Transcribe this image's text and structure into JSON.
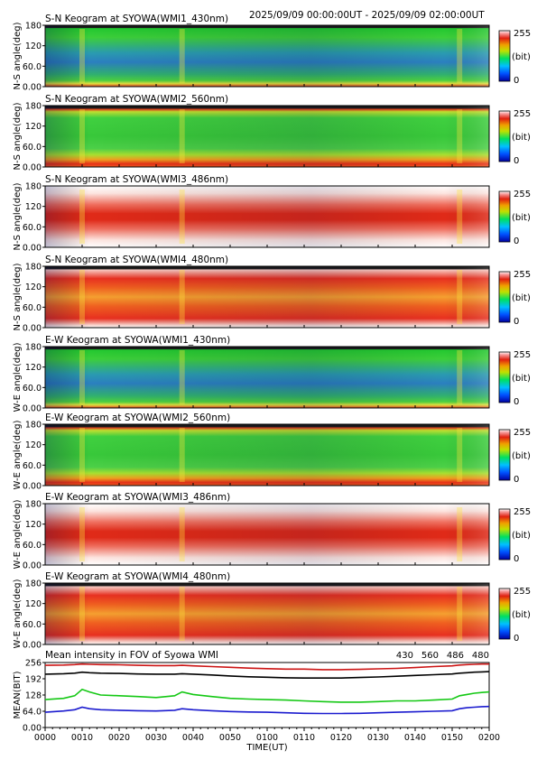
{
  "header": {
    "time_range": "2025/09/09 00:00:00UT - 2025/09/09 02:00:00UT"
  },
  "colors": {
    "430": "#1b1bcf",
    "560": "#14c814",
    "486": "#cc1414",
    "480": "#000000"
  },
  "chart_data": [
    {
      "type": "heatmap",
      "title": "S-N Keogram at SYOWA(WMI1_430nm)",
      "ylabel": "N-S angle(deg)",
      "profile": "blue_green",
      "yticks": [
        "180",
        "120",
        "60.0",
        "0.00"
      ],
      "ylim": [
        0,
        180
      ],
      "colorbar": {
        "max": "255",
        "unit": "(bit)",
        "min": "0"
      }
    },
    {
      "type": "heatmap",
      "title": "S-N Keogram at SYOWA(WMI2_560nm)",
      "ylabel": "N-S angle(deg)",
      "profile": "green_edges",
      "yticks": [
        "180",
        "120",
        "60.0",
        "0.00"
      ],
      "ylim": [
        0,
        180
      ],
      "colorbar": {
        "max": "255",
        "unit": "(bit)",
        "min": "0"
      }
    },
    {
      "type": "heatmap",
      "title": "S-N Keogram at SYOWA(WMI3_486nm)",
      "ylabel": "N-S angle(deg)",
      "profile": "red_band",
      "yticks": [
        "180",
        "120",
        "60.0",
        "0.00"
      ],
      "ylim": [
        0,
        180
      ],
      "colorbar": {
        "max": "255",
        "unit": "(bit)",
        "min": "0"
      }
    },
    {
      "type": "heatmap",
      "title": "S-N Keogram at SYOWA(WMI4_480nm)",
      "ylabel": "N-S angle(deg)",
      "profile": "red_orange",
      "yticks": [
        "180",
        "120",
        "60.0",
        "0.00"
      ],
      "ylim": [
        0,
        180
      ],
      "colorbar": {
        "max": "255",
        "unit": "(bit)",
        "min": "0"
      }
    },
    {
      "type": "heatmap",
      "title": "E-W Keogram at SYOWA(WMI1_430nm)",
      "ylabel": "W-E angle(deg)",
      "profile": "blue_green",
      "yticks": [
        "180",
        "120",
        "60.0",
        "0.00"
      ],
      "ylim": [
        0,
        180
      ],
      "colorbar": {
        "max": "255",
        "unit": "(bit)",
        "min": "0"
      }
    },
    {
      "type": "heatmap",
      "title": "E-W Keogram at SYOWA(WMI2_560nm)",
      "ylabel": "W-E angle(deg)",
      "profile": "green_edges",
      "yticks": [
        "180",
        "120",
        "60.0",
        "0.00"
      ],
      "ylim": [
        0,
        180
      ],
      "colorbar": {
        "max": "255",
        "unit": "(bit)",
        "min": "0"
      }
    },
    {
      "type": "heatmap",
      "title": "E-W Keogram at SYOWA(WMI3_486nm)",
      "ylabel": "W-E angle(deg)",
      "profile": "red_band",
      "yticks": [
        "180",
        "120",
        "60.0",
        "0.00"
      ],
      "ylim": [
        0,
        180
      ],
      "colorbar": {
        "max": "255",
        "unit": "(bit)",
        "min": "0"
      }
    },
    {
      "type": "heatmap",
      "title": "E-W Keogram at SYOWA(WMI4_480nm)",
      "ylabel": "W-E angle(deg)",
      "profile": "red_orange",
      "yticks": [
        "180",
        "120",
        "60.0",
        "0.00"
      ],
      "ylim": [
        0,
        180
      ],
      "colorbar": {
        "max": "255",
        "unit": "(bit)",
        "min": "0"
      }
    },
    {
      "type": "line",
      "title": "Mean intensity in FOV of Syowa WMI",
      "ylabel": "MEAN(BIT)",
      "xlabel": "TIME(UT)",
      "ylim": [
        0,
        256
      ],
      "yticks": [
        "256",
        "192",
        "128",
        "64.0",
        "0.00"
      ],
      "xticks": [
        "0000",
        "0010",
        "0020",
        "0030",
        "0040",
        "0050",
        "0100",
        "0110",
        "0120",
        "0130",
        "0140",
        "0150",
        "0200"
      ],
      "x_minutes": [
        0,
        5,
        8,
        10,
        12,
        15,
        20,
        25,
        30,
        35,
        37,
        40,
        45,
        50,
        55,
        60,
        65,
        70,
        75,
        80,
        85,
        90,
        95,
        100,
        105,
        110,
        112,
        114,
        116,
        118,
        120
      ],
      "series": [
        {
          "name": "430",
          "values": [
            60,
            65,
            70,
            80,
            74,
            70,
            68,
            66,
            65,
            68,
            74,
            70,
            66,
            63,
            61,
            60,
            58,
            56,
            55,
            55,
            56,
            58,
            60,
            62,
            64,
            66,
            74,
            78,
            80,
            82,
            83
          ]
        },
        {
          "name": "560",
          "values": [
            110,
            115,
            125,
            150,
            140,
            128,
            125,
            122,
            118,
            125,
            140,
            130,
            122,
            115,
            112,
            110,
            108,
            105,
            102,
            100,
            100,
            102,
            105,
            105,
            108,
            112,
            125,
            130,
            135,
            138,
            140
          ]
        },
        {
          "name": "486",
          "values": [
            245,
            246,
            248,
            250,
            249,
            248,
            247,
            245,
            244,
            244,
            245,
            243,
            240,
            237,
            234,
            232,
            230,
            230,
            228,
            228,
            229,
            231,
            233,
            236,
            240,
            243,
            246,
            248,
            249,
            250,
            250
          ]
        },
        {
          "name": "480",
          "values": [
            210,
            212,
            214,
            218,
            216,
            214,
            213,
            211,
            210,
            210,
            212,
            210,
            207,
            203,
            200,
            198,
            196,
            195,
            195,
            195,
            197,
            199,
            202,
            205,
            208,
            211,
            214,
            216,
            218,
            219,
            220
          ]
        }
      ]
    }
  ]
}
